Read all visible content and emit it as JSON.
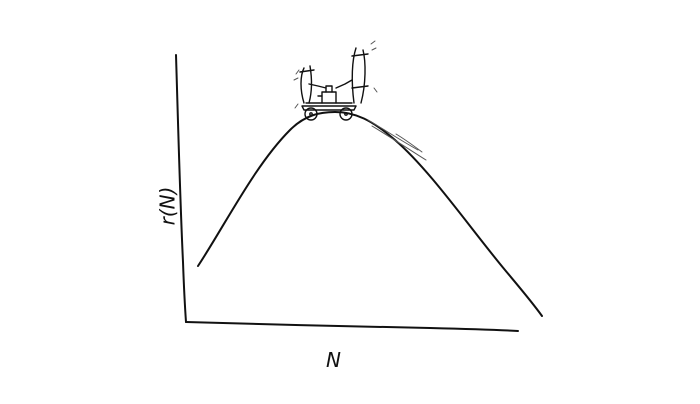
{
  "axes": {
    "x_label": "N",
    "y_label": "r(N)"
  },
  "illustration": {
    "icon": "lunar-rover-icon"
  }
}
